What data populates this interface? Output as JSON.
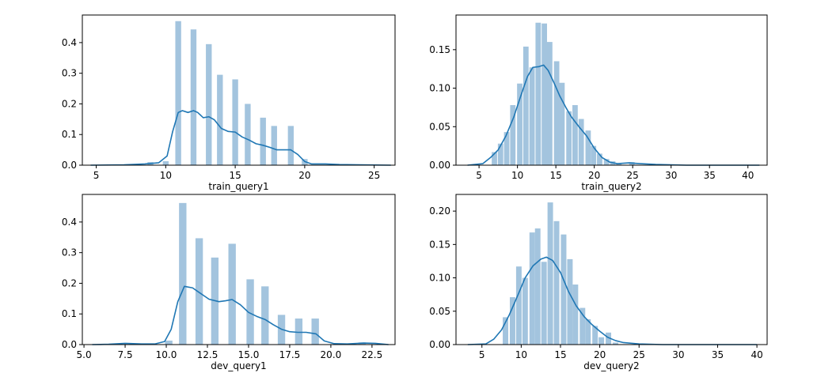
{
  "colors": {
    "bar": "#a3c4de",
    "kde": "#1f77b4",
    "axis": "#000000"
  },
  "chart_data": [
    {
      "type": "bar",
      "xlabel": "train_query1",
      "xlim": [
        4,
        26.5
      ],
      "ylim": [
        0,
        0.49
      ],
      "xticks": [
        5,
        10,
        15,
        20,
        25
      ],
      "xtick_labels": [
        "5",
        "10",
        "15",
        "20",
        "25"
      ],
      "yticks": [
        0,
        0.1,
        0.2,
        0.3,
        0.4
      ],
      "ytick_labels": [
        "0.0",
        "0.1",
        "0.2",
        "0.3",
        "0.4"
      ],
      "bin_width": 0.42,
      "bars": [
        {
          "x": 8.9,
          "value": 0.01
        },
        {
          "x": 10.0,
          "value": 0.013
        },
        {
          "x": 10.9,
          "value": 0.47
        },
        {
          "x": 12.0,
          "value": 0.443
        },
        {
          "x": 13.1,
          "value": 0.395
        },
        {
          "x": 13.9,
          "value": 0.295
        },
        {
          "x": 15.0,
          "value": 0.28
        },
        {
          "x": 15.9,
          "value": 0.2
        },
        {
          "x": 17.0,
          "value": 0.155
        },
        {
          "x": 17.8,
          "value": 0.128
        },
        {
          "x": 19.0,
          "value": 0.128
        },
        {
          "x": 20.0,
          "value": 0.02
        }
      ],
      "kde": [
        [
          4.6,
          0
        ],
        [
          7,
          0.001
        ],
        [
          8.5,
          0.004
        ],
        [
          9.5,
          0.008
        ],
        [
          10.1,
          0.03
        ],
        [
          10.5,
          0.11
        ],
        [
          10.9,
          0.172
        ],
        [
          11.2,
          0.178
        ],
        [
          11.6,
          0.172
        ],
        [
          12.0,
          0.178
        ],
        [
          12.3,
          0.172
        ],
        [
          12.7,
          0.155
        ],
        [
          13.1,
          0.158
        ],
        [
          13.5,
          0.148
        ],
        [
          14.0,
          0.12
        ],
        [
          14.5,
          0.11
        ],
        [
          15.0,
          0.108
        ],
        [
          15.5,
          0.092
        ],
        [
          16.0,
          0.082
        ],
        [
          16.5,
          0.07
        ],
        [
          17.0,
          0.065
        ],
        [
          17.5,
          0.058
        ],
        [
          18.0,
          0.05
        ],
        [
          18.5,
          0.05
        ],
        [
          19.0,
          0.05
        ],
        [
          19.5,
          0.035
        ],
        [
          20.0,
          0.012
        ],
        [
          20.5,
          0.004
        ],
        [
          21.5,
          0.004
        ],
        [
          22.5,
          0.002
        ],
        [
          24,
          0.001
        ],
        [
          26.2,
          0
        ]
      ]
    },
    {
      "type": "bar",
      "xlabel": "train_query2",
      "xlim": [
        2,
        42.5
      ],
      "ylim": [
        0,
        0.195
      ],
      "xticks": [
        5,
        10,
        15,
        20,
        25,
        30,
        35,
        40
      ],
      "xtick_labels": [
        "5",
        "10",
        "15",
        "20",
        "25",
        "30",
        "35",
        "40"
      ],
      "yticks": [
        0,
        0.05,
        0.1,
        0.15
      ],
      "ytick_labels": [
        "0.00",
        "0.05",
        "0.10",
        "0.15"
      ],
      "bin_width": 0.7,
      "bars": [
        {
          "x": 7.0,
          "value": 0.017
        },
        {
          "x": 7.8,
          "value": 0.028
        },
        {
          "x": 8.6,
          "value": 0.043
        },
        {
          "x": 9.4,
          "value": 0.078
        },
        {
          "x": 10.3,
          "value": 0.106
        },
        {
          "x": 11.1,
          "value": 0.154
        },
        {
          "x": 11.9,
          "value": 0.127
        },
        {
          "x": 12.7,
          "value": 0.185
        },
        {
          "x": 13.5,
          "value": 0.184
        },
        {
          "x": 14.2,
          "value": 0.16
        },
        {
          "x": 15.1,
          "value": 0.135
        },
        {
          "x": 15.8,
          "value": 0.107
        },
        {
          "x": 16.7,
          "value": 0.07
        },
        {
          "x": 17.5,
          "value": 0.078
        },
        {
          "x": 18.3,
          "value": 0.06
        },
        {
          "x": 19.2,
          "value": 0.045
        },
        {
          "x": 19.9,
          "value": 0.025
        },
        {
          "x": 20.7,
          "value": 0.015
        },
        {
          "x": 21.6,
          "value": 0.008
        },
        {
          "x": 22.4,
          "value": 0.005
        },
        {
          "x": 23.2,
          "value": 0.002
        },
        {
          "x": 24.9,
          "value": 0.004
        }
      ],
      "kde": [
        [
          3.5,
          0
        ],
        [
          5.5,
          0.002
        ],
        [
          6.5,
          0.01
        ],
        [
          7.5,
          0.02
        ],
        [
          8.5,
          0.038
        ],
        [
          9.5,
          0.062
        ],
        [
          10.5,
          0.092
        ],
        [
          11.3,
          0.115
        ],
        [
          12.0,
          0.127
        ],
        [
          12.8,
          0.128
        ],
        [
          13.4,
          0.13
        ],
        [
          14.0,
          0.123
        ],
        [
          14.8,
          0.106
        ],
        [
          15.5,
          0.09
        ],
        [
          16.3,
          0.075
        ],
        [
          17.0,
          0.063
        ],
        [
          18.0,
          0.05
        ],
        [
          19.0,
          0.038
        ],
        [
          20.0,
          0.022
        ],
        [
          21.0,
          0.01
        ],
        [
          22.0,
          0.004
        ],
        [
          23.0,
          0.002
        ],
        [
          24.5,
          0.003
        ],
        [
          26,
          0.002
        ],
        [
          28,
          0.001
        ],
        [
          32,
          0
        ],
        [
          41.5,
          0
        ]
      ]
    },
    {
      "type": "bar",
      "xlabel": "dev_query1",
      "xlim": [
        4.9,
        23.9
      ],
      "ylim": [
        0,
        0.49
      ],
      "xticks": [
        5,
        7.5,
        10,
        12.5,
        15,
        17.5,
        20,
        22.5
      ],
      "xtick_labels": [
        "5.0",
        "7.5",
        "10.0",
        "12.5",
        "15.0",
        "17.5",
        "20.0",
        "22.5"
      ],
      "yticks": [
        0,
        0.1,
        0.2,
        0.3,
        0.4
      ],
      "ytick_labels": [
        "0.0",
        "0.1",
        "0.2",
        "0.3",
        "0.4"
      ],
      "bin_width": 0.45,
      "bars": [
        {
          "x": 10.15,
          "value": 0.013
        },
        {
          "x": 11.0,
          "value": 0.462
        },
        {
          "x": 12.0,
          "value": 0.347
        },
        {
          "x": 12.95,
          "value": 0.284
        },
        {
          "x": 14.0,
          "value": 0.329
        },
        {
          "x": 15.1,
          "value": 0.213
        },
        {
          "x": 16.0,
          "value": 0.19
        },
        {
          "x": 17.0,
          "value": 0.097
        },
        {
          "x": 18.05,
          "value": 0.085
        },
        {
          "x": 19.05,
          "value": 0.085
        },
        {
          "x": 21.9,
          "value": 0.007
        }
      ],
      "kde": [
        [
          5.5,
          0
        ],
        [
          6.5,
          0.001
        ],
        [
          7.5,
          0.004
        ],
        [
          8.5,
          0.002
        ],
        [
          9.3,
          0.002
        ],
        [
          9.9,
          0.01
        ],
        [
          10.3,
          0.05
        ],
        [
          10.7,
          0.14
        ],
        [
          11.1,
          0.19
        ],
        [
          11.6,
          0.185
        ],
        [
          12.0,
          0.17
        ],
        [
          12.6,
          0.148
        ],
        [
          13.2,
          0.14
        ],
        [
          13.6,
          0.143
        ],
        [
          14.0,
          0.147
        ],
        [
          14.5,
          0.13
        ],
        [
          15.0,
          0.105
        ],
        [
          15.5,
          0.092
        ],
        [
          16.0,
          0.082
        ],
        [
          16.5,
          0.065
        ],
        [
          17.0,
          0.05
        ],
        [
          17.5,
          0.042
        ],
        [
          18.0,
          0.04
        ],
        [
          18.5,
          0.04
        ],
        [
          19.1,
          0.035
        ],
        [
          19.6,
          0.012
        ],
        [
          20.2,
          0.003
        ],
        [
          21,
          0.002
        ],
        [
          22,
          0.005
        ],
        [
          22.7,
          0.004
        ],
        [
          23.5,
          0
        ]
      ]
    },
    {
      "type": "bar",
      "xlabel": "dev_query2",
      "xlim": [
        1.7,
        41.3
      ],
      "ylim": [
        0,
        0.225
      ],
      "xticks": [
        5,
        10,
        15,
        20,
        25,
        30,
        35,
        40
      ],
      "xtick_labels": [
        "5",
        "10",
        "15",
        "20",
        "25",
        "30",
        "35",
        "40"
      ],
      "yticks": [
        0,
        0.05,
        0.1,
        0.15,
        0.2
      ],
      "ytick_labels": [
        "0.00",
        "0.05",
        "0.10",
        "0.15",
        "0.20"
      ],
      "bin_width": 0.7,
      "bars": [
        {
          "x": 8.0,
          "value": 0.041
        },
        {
          "x": 8.9,
          "value": 0.071
        },
        {
          "x": 9.7,
          "value": 0.117
        },
        {
          "x": 10.5,
          "value": 0.1
        },
        {
          "x": 11.4,
          "value": 0.168
        },
        {
          "x": 12.1,
          "value": 0.174
        },
        {
          "x": 12.9,
          "value": 0.124
        },
        {
          "x": 13.7,
          "value": 0.213
        },
        {
          "x": 14.5,
          "value": 0.185
        },
        {
          "x": 15.4,
          "value": 0.165
        },
        {
          "x": 16.2,
          "value": 0.128
        },
        {
          "x": 16.9,
          "value": 0.09
        },
        {
          "x": 17.8,
          "value": 0.055
        },
        {
          "x": 18.5,
          "value": 0.038
        },
        {
          "x": 19.4,
          "value": 0.028
        },
        {
          "x": 20.2,
          "value": 0.011
        },
        {
          "x": 21.1,
          "value": 0.018
        },
        {
          "x": 22.0,
          "value": 0.003
        }
      ],
      "kde": [
        [
          3.2,
          0
        ],
        [
          5.5,
          0.001
        ],
        [
          6.5,
          0.008
        ],
        [
          7.5,
          0.022
        ],
        [
          8.5,
          0.045
        ],
        [
          9.5,
          0.072
        ],
        [
          10.5,
          0.1
        ],
        [
          11.5,
          0.118
        ],
        [
          12.5,
          0.128
        ],
        [
          13.2,
          0.131
        ],
        [
          14.0,
          0.126
        ],
        [
          15.0,
          0.108
        ],
        [
          16.0,
          0.08
        ],
        [
          17.0,
          0.058
        ],
        [
          18.0,
          0.042
        ],
        [
          19.0,
          0.03
        ],
        [
          20.0,
          0.02
        ],
        [
          21.0,
          0.011
        ],
        [
          22.0,
          0.006
        ],
        [
          23.0,
          0.003
        ],
        [
          25,
          0.001
        ],
        [
          28,
          0
        ],
        [
          40,
          0
        ]
      ]
    }
  ]
}
